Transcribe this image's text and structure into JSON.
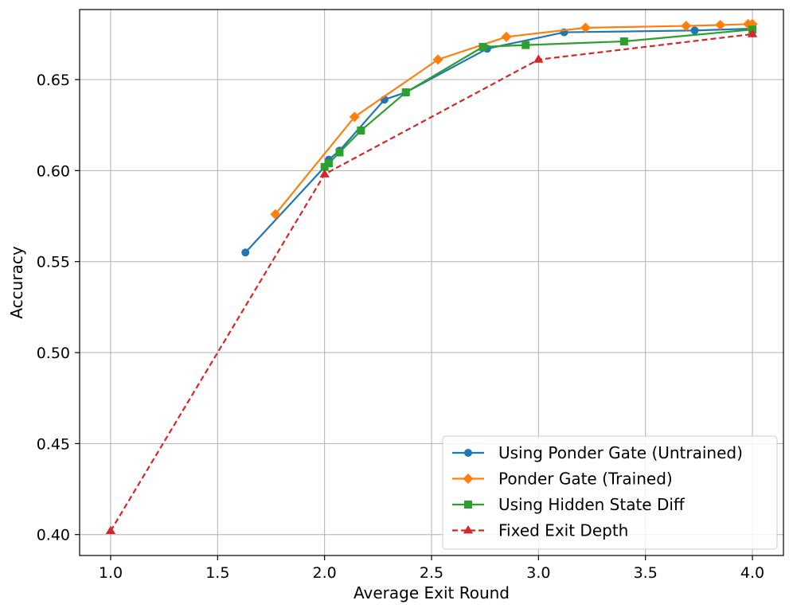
{
  "chart_data": {
    "type": "line",
    "title": "",
    "xlabel": "Average Exit Round",
    "ylabel": "Accuracy",
    "xlim": [
      0.855,
      4.145
    ],
    "ylim": [
      0.3885,
      0.6885
    ],
    "xticks": [
      1.0,
      1.5,
      2.0,
      2.5,
      3.0,
      3.5,
      4.0
    ],
    "xtick_labels": [
      "1.0",
      "1.5",
      "2.0",
      "2.5",
      "3.0",
      "3.5",
      "4.0"
    ],
    "yticks": [
      0.4,
      0.45,
      0.5,
      0.55,
      0.6,
      0.65
    ],
    "ytick_labels": [
      "0.40",
      "0.45",
      "0.50",
      "0.55",
      "0.60",
      "0.65"
    ],
    "grid": true,
    "legend_position": "lower-right",
    "series": [
      {
        "name": "Using Ponder Gate (Untrained)",
        "color": "#1f77b4",
        "marker": "circle",
        "dash": "solid",
        "x": [
          1.63,
          2.0,
          2.02,
          2.07,
          2.28,
          2.38,
          2.76,
          3.12,
          3.73,
          4.0
        ],
        "y": [
          0.555,
          0.602,
          0.606,
          0.611,
          0.639,
          0.643,
          0.667,
          0.676,
          0.677,
          0.678
        ]
      },
      {
        "name": "Ponder Gate (Trained)",
        "color": "#ff7f0e",
        "marker": "diamond",
        "dash": "solid",
        "x": [
          1.77,
          2.14,
          2.53,
          2.85,
          3.22,
          3.69,
          3.85,
          3.98,
          4.0
        ],
        "y": [
          0.576,
          0.6295,
          0.661,
          0.6735,
          0.6785,
          0.6795,
          0.68,
          0.6805,
          0.6805
        ]
      },
      {
        "name": "Using Hidden State Diff",
        "color": "#2ca02c",
        "marker": "square",
        "dash": "solid",
        "x": [
          2.0,
          2.02,
          2.07,
          2.17,
          2.38,
          2.74,
          2.94,
          3.4,
          4.0
        ],
        "y": [
          0.602,
          0.604,
          0.61,
          0.622,
          0.643,
          0.668,
          0.669,
          0.671,
          0.6775
        ]
      },
      {
        "name": "Fixed Exit Depth",
        "color": "#d62728",
        "marker": "triangle",
        "dash": "dashed",
        "x": [
          1.0,
          2.0,
          3.0,
          4.0
        ],
        "y": [
          0.402,
          0.598,
          0.661,
          0.675
        ]
      }
    ]
  }
}
